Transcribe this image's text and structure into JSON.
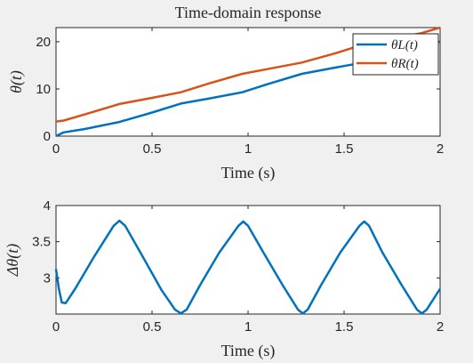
{
  "colors": {
    "blue": "#0072bd",
    "orange": "#d95319",
    "axis": "#262626"
  },
  "chart_data": [
    {
      "type": "line",
      "title": "Time-domain response",
      "xlabel": "Time (s)",
      "ylabel": "θ(t)",
      "xlim": [
        0,
        2
      ],
      "ylim": [
        0,
        23
      ],
      "xticks": [
        0,
        0.5,
        1,
        1.5,
        2
      ],
      "xtick_labels": [
        "0",
        "0.5",
        "1",
        "1.5",
        "2"
      ],
      "yticks": [
        0,
        10,
        20
      ],
      "ytick_labels": [
        "0",
        "10",
        "20"
      ],
      "legend": "top-right",
      "grid": false,
      "series": [
        {
          "name": "θL(t)",
          "legend_label": "θL(t)",
          "color": "#0072bd",
          "x": [
            0,
            0.04,
            0.15,
            0.33,
            0.5,
            0.65,
            0.8,
            0.97,
            1.1,
            1.28,
            1.45,
            1.6,
            1.75,
            1.9,
            2.0
          ],
          "y": [
            0,
            0.8,
            1.5,
            3.0,
            5.0,
            6.9,
            8.0,
            9.3,
            11.0,
            13.2,
            14.5,
            15.6,
            17.0,
            19.2,
            20.0
          ]
        },
        {
          "name": "θR(t)",
          "legend_label": "θR(t)",
          "color": "#d95319",
          "x": [
            0,
            0.04,
            0.15,
            0.33,
            0.5,
            0.65,
            0.8,
            0.97,
            1.1,
            1.28,
            1.45,
            1.6,
            1.75,
            1.9,
            2.0
          ],
          "y": [
            3.1,
            3.3,
            4.6,
            6.8,
            8.1,
            9.3,
            11.2,
            13.2,
            14.2,
            15.6,
            17.5,
            19.4,
            20.6,
            21.8,
            23.0
          ]
        }
      ]
    },
    {
      "type": "line",
      "xlabel": "Time (s)",
      "ylabel": "Δθ(t)",
      "xlim": [
        0,
        2
      ],
      "ylim": [
        2.5,
        4
      ],
      "xticks": [
        0,
        0.5,
        1,
        1.5,
        2
      ],
      "xtick_labels": [
        "0",
        "0.5",
        "1",
        "1.5",
        "2"
      ],
      "yticks": [
        3,
        3.5,
        4
      ],
      "ytick_labels": [
        "3",
        "3.5",
        "4"
      ],
      "grid": false,
      "series": [
        {
          "color": "#0072bd",
          "x": [
            0,
            0.015,
            0.03,
            0.05,
            0.1,
            0.2,
            0.3,
            0.33,
            0.36,
            0.45,
            0.55,
            0.62,
            0.65,
            0.68,
            0.75,
            0.85,
            0.95,
            0.975,
            1.0,
            1.08,
            1.18,
            1.26,
            1.285,
            1.31,
            1.38,
            1.48,
            1.58,
            1.605,
            1.63,
            1.7,
            1.8,
            1.88,
            1.905,
            1.93,
            2.0
          ],
          "y": [
            3.12,
            2.85,
            2.66,
            2.65,
            2.85,
            3.3,
            3.72,
            3.79,
            3.72,
            3.3,
            2.83,
            2.56,
            2.51,
            2.56,
            2.9,
            3.35,
            3.72,
            3.78,
            3.72,
            3.35,
            2.9,
            2.56,
            2.51,
            2.56,
            2.9,
            3.35,
            3.72,
            3.78,
            3.72,
            3.35,
            2.9,
            2.56,
            2.51,
            2.56,
            2.85
          ]
        }
      ]
    }
  ]
}
